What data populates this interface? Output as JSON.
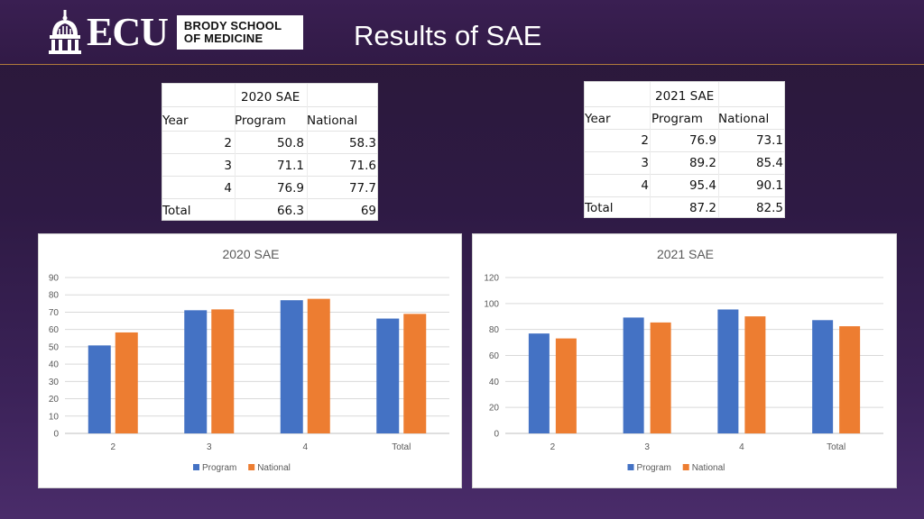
{
  "header": {
    "logo_ecu": "ECU",
    "logo_line1": "BRODY SCHOOL",
    "logo_line2": "OF MEDICINE",
    "title": "Results of SAE"
  },
  "tables": [
    {
      "caption": "2020 SAE",
      "columns": [
        "Year",
        "Program",
        "National"
      ],
      "rows": [
        [
          "2",
          "50.8",
          "58.3"
        ],
        [
          "3",
          "71.1",
          "71.6"
        ],
        [
          "4",
          "76.9",
          "77.7"
        ],
        [
          "Total",
          "66.3",
          "69"
        ]
      ]
    },
    {
      "caption": "2021 SAE",
      "columns": [
        "Year",
        "Program",
        "National"
      ],
      "rows": [
        [
          "2",
          "76.9",
          "73.1"
        ],
        [
          "3",
          "89.2",
          "85.4"
        ],
        [
          "4",
          "95.4",
          "90.1"
        ],
        [
          "Total",
          "87.2",
          "82.5"
        ]
      ]
    }
  ],
  "chart_data": [
    {
      "type": "bar",
      "title": "2020 SAE",
      "categories": [
        "2",
        "3",
        "4",
        "Total"
      ],
      "series": [
        {
          "name": "Program",
          "values": [
            50.8,
            71.1,
            76.9,
            66.3
          ],
          "color": "#4472c4"
        },
        {
          "name": "National",
          "values": [
            58.3,
            71.6,
            77.7,
            69
          ],
          "color": "#ed7d31"
        }
      ],
      "ylim": [
        0,
        90
      ],
      "yticks": [
        0,
        10,
        20,
        30,
        40,
        50,
        60,
        70,
        80,
        90
      ],
      "grid": true,
      "legend": "bottom"
    },
    {
      "type": "bar",
      "title": "2021 SAE",
      "categories": [
        "2",
        "3",
        "4",
        "Total"
      ],
      "series": [
        {
          "name": "Program",
          "values": [
            76.9,
            89.2,
            95.4,
            87.2
          ],
          "color": "#4472c4"
        },
        {
          "name": "National",
          "values": [
            73.1,
            85.4,
            90.1,
            82.5
          ],
          "color": "#ed7d31"
        }
      ],
      "ylim": [
        0,
        120
      ],
      "yticks": [
        0,
        20,
        40,
        60,
        80,
        100,
        120
      ],
      "grid": true,
      "legend": "bottom"
    }
  ]
}
